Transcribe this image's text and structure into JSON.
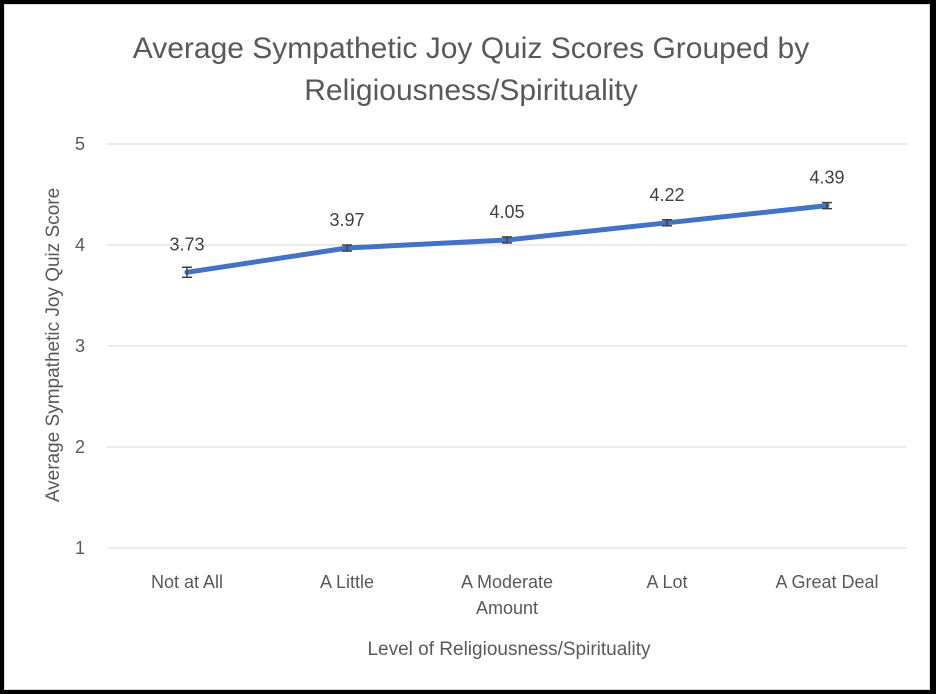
{
  "chart_data": {
    "type": "line",
    "title_lines": [
      "Average Sympathetic Joy Quiz Scores Grouped by",
      "Religiousness/Spirituality"
    ],
    "xlabel": "Level of Religiousness/Spirituality",
    "ylabel": "Average Sympathetic Joy Quiz Score",
    "categories": [
      [
        "Not at All"
      ],
      [
        "A Little"
      ],
      [
        "A Moderate",
        "Amount"
      ],
      [
        "A Lot"
      ],
      [
        "A Great Deal"
      ]
    ],
    "values": [
      3.73,
      3.97,
      4.05,
      4.22,
      4.39
    ],
    "data_labels": [
      "3.73",
      "3.97",
      "4.05",
      "4.22",
      "4.39"
    ],
    "error": [
      0.05,
      0.03,
      0.03,
      0.03,
      0.03
    ],
    "ylim": [
      1,
      5
    ],
    "yticks": [
      "1",
      "2",
      "3",
      "4",
      "5"
    ],
    "grid": true,
    "legend": "none",
    "line_color": "#4472c4",
    "error_color": "#404040"
  }
}
